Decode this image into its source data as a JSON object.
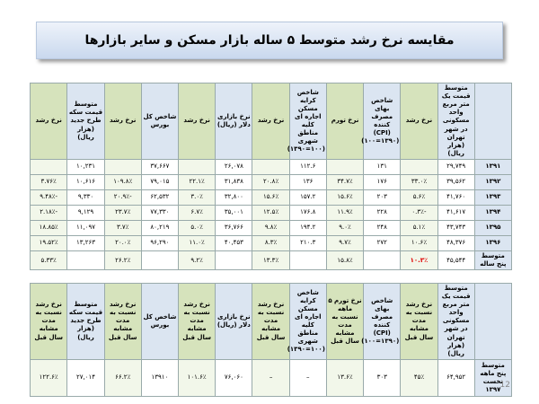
{
  "title": "مقایسه نرخ رشد متوسط ۵ ساله بازار مسکن و سایر بازارها",
  "table1": {
    "headers": [
      null,
      "متوسط قیمت یک متر مربع واحد مسکونی در شهر تهران (هزار ریال)",
      "نرخ رشد",
      "شاخص بهای مصرف کننده (CPI) (۱۰۰=۱۳۹۰)",
      "نرخ تورم",
      "شاخص کرایه مسکن اجاره ای کلیه مناطق شهری (۱۰۰=۱۳۹۰)",
      "نرخ رشد",
      "نرخ بازاری دلار (ریال)",
      "نرخ رشد",
      "شاخص کل بورس",
      "نرخ رشد",
      "متوسط قیمت سکه طرح جدید (هزار ریال)",
      "نرخ رشد"
    ],
    "rows": [
      [
        "۱۳۹۱",
        "۲۹,۷۴۹",
        null,
        "۱۳۱",
        null,
        "۱۱۲.۶",
        null,
        "۲۶,۰۷۸",
        null,
        "۳۷,۶۶۷",
        null,
        "۱۰,۲۳۱",
        null
      ],
      [
        "۱۳۹۲",
        "۳۹,۵۶۲",
        "۳۳.۰٪",
        "۱۷۶",
        "۳۴.۷٪",
        "۱۳۶",
        "۲۰.۸٪",
        "۳۱,۸۳۸",
        "۲۲.۱٪",
        "۷۹,۰۱۵",
        "۱۰۹.۸٪",
        "۱۰,۶۱۶",
        "۳.۷۶٪"
      ],
      [
        "۱۳۹۳",
        "۴۱,۷۶۰",
        "۵.۶٪",
        "۲۰۳",
        "۱۵.۶٪",
        "۱۵۷.۲",
        "۱۵.۶٪",
        "۳۲,۸۰۰",
        "۳.۰٪",
        "۶۲,۵۳۲",
        "-۲۰.۹٪",
        "۹,۳۳۰",
        "-۹.۴۸٪"
      ],
      [
        "۱۳۹۴",
        "۴۱,۶۱۷",
        "-۰.۳٪",
        "۲۲۸",
        "۱۱.۹٪",
        "۱۷۶.۸",
        "۱۲.۵٪",
        "۳۵,۰۰۱",
        "۶.۷٪",
        "۷۷,۳۳۰",
        "۲۳.۷٪",
        "۹,۱۲۹",
        "-۲.۱۸٪"
      ],
      [
        "۱۳۹۵",
        "۴۳,۷۴۳",
        "۵.۱٪",
        "۲۴۸",
        "۹.۰٪",
        "۱۹۴.۲",
        "۹.۸٪",
        "۳۶,۷۶۶",
        "۵.۰٪",
        "۸۰,۲۱۹",
        "۳.۷٪",
        "۱۱,۰۹۷",
        "۱۸.۸۵٪"
      ],
      [
        "۱۳۹۶",
        "۴۸,۳۷۶",
        "۱۰.۶٪",
        "۲۷۲",
        "۹.۷٪",
        "۲۱۰.۳",
        "۸.۳٪",
        "۴۰,۴۵۳",
        "۱۱.۰٪",
        "۹۶,۲۹۰",
        "۲۰.۰٪",
        "۱۳,۲۶۳",
        "۱۹.۵۲٪"
      ],
      [
        "متوسط پنج ساله",
        "۴۵,۵۴۴",
        "۱۰.۳٪",
        null,
        "۱۵.۸٪",
        null,
        "۱۳.۳٪",
        null,
        "۹.۲٪",
        null,
        "۲۶.۲٪",
        null,
        "۵.۳۳٪"
      ]
    ]
  },
  "table2": {
    "headers": [
      null,
      "متوسط قیمت یک متر مربع واحد مسکونی در شهر تهران (هزار ریال)",
      "نرخ رشد نسبت به مدت مشابه سال قبل",
      "شاخص بهای مصرف کننده (CPI) (۱۰۰=۱۳۹۰)",
      "نرخ تورم ۵ ماهه نسبت به مدت مشابه سال قبل",
      "شاخص کرایه مسکن اجاره ای کلیه مناطق شهری (۱۰۰=۱۳۹۰)",
      "نرخ رشد نسبت به مدت مشابه سال قبل",
      "نرخ بازاری دلار (ریال)",
      "نرخ رشد نسبت به مدت مشابه سال قبل",
      "شاخص کل بورس",
      "نرخ رشد نسبت به مدت مشابه سال قبل",
      "متوسط قیمت سکه طرح جدید (هزار ریال)",
      "نرخ رشد نسبت به مدت مشابه سال قبل"
    ],
    "rows": [
      [
        "متوسط پنج ماهه نخست ۱۳۹۷",
        "۶۴,۹۵۲",
        "۴۵٪",
        "۳۰۳",
        "۱۳.۶٪",
        "–",
        "–",
        "۷۶,۰۶۰",
        "۱۰۱.۶٪",
        "۱۳۹۱۰",
        "۶۶.۲٪",
        "۲۷,۰۱۴",
        "۱۲۲.۶٪"
      ]
    ]
  },
  "page_number": "12"
}
